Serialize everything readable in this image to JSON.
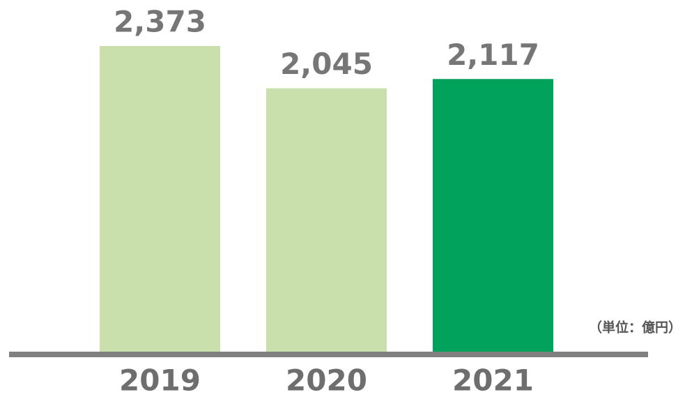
{
  "chart_data": {
    "type": "bar",
    "categories": [
      "2019",
      "2020",
      "2021"
    ],
    "values": [
      2373,
      2045,
      2117
    ],
    "value_labels": [
      "2,373",
      "2,045",
      "2,117"
    ],
    "colors": [
      "#c9e0ad",
      "#c9e0ad",
      "#00a25c"
    ],
    "unit": "（単位：億円）"
  }
}
